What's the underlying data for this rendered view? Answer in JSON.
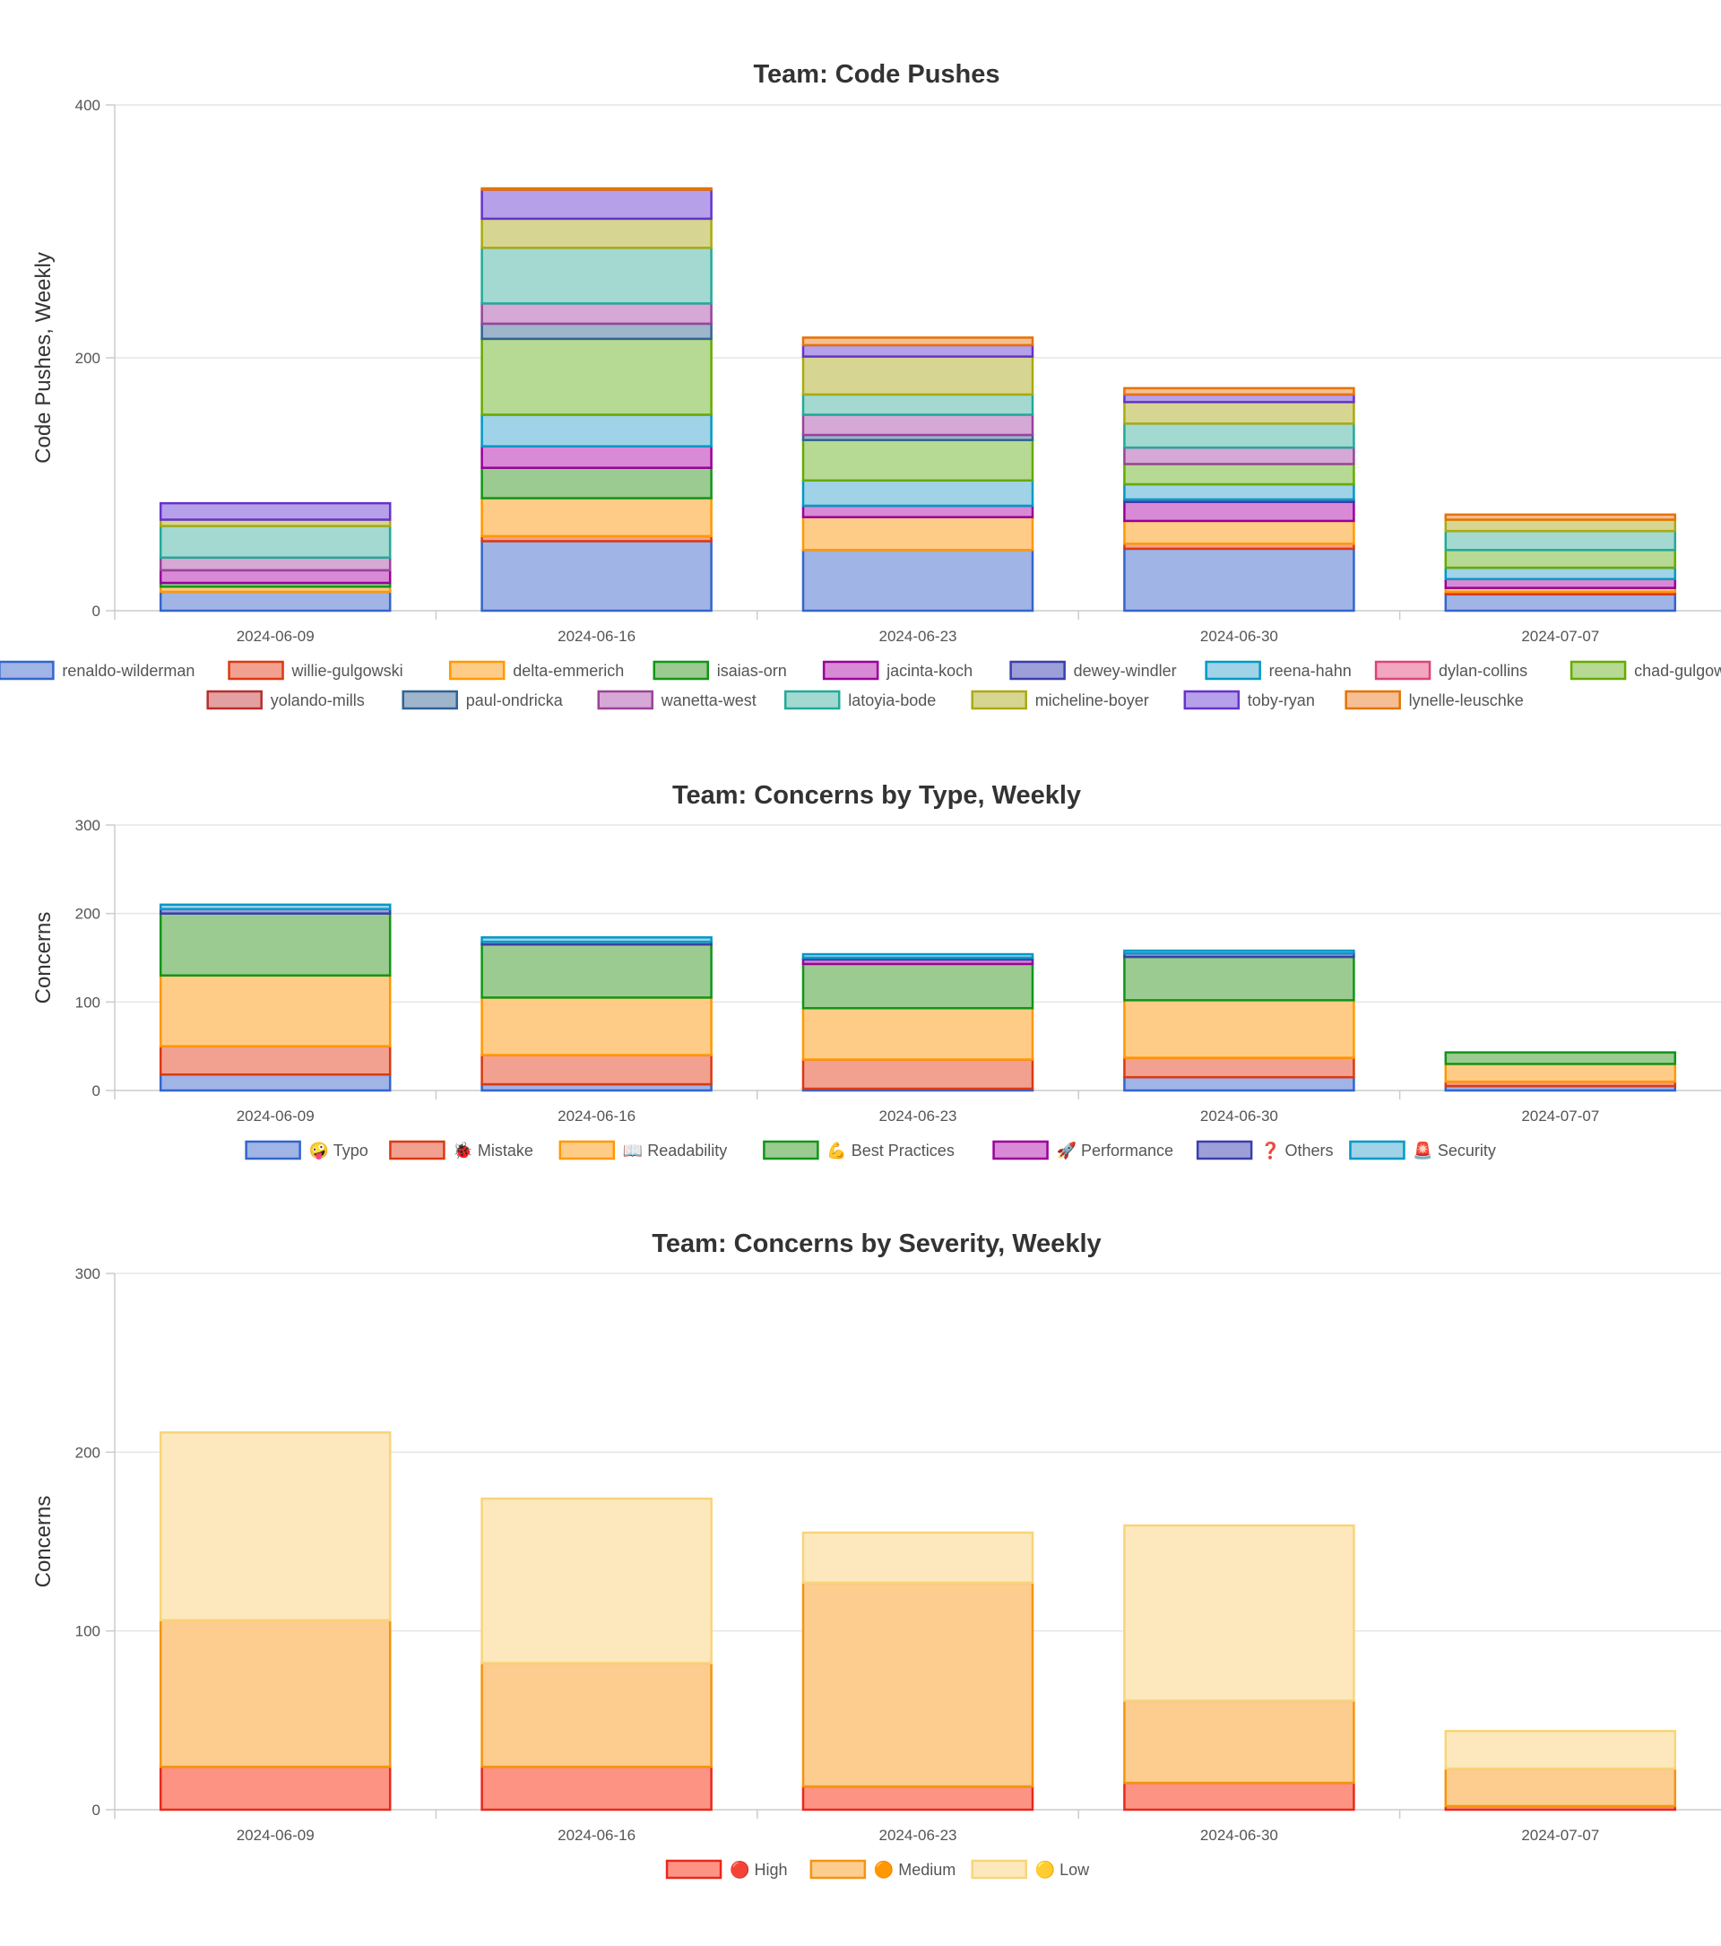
{
  "chart_data": [
    {
      "type": "bar",
      "stacked": true,
      "title": "Team: Code Pushes",
      "xlabel": "",
      "ylabel": "Code Pushes, Weekly",
      "ylim": [
        0,
        400
      ],
      "yticks": [
        0,
        200,
        400
      ],
      "categories": [
        "2024-06-09",
        "2024-06-16",
        "2024-06-23",
        "2024-06-30",
        "2024-07-07"
      ],
      "series": [
        {
          "name": "renaldo-wilderman",
          "color": "#3366cc",
          "fill": "#a0b4e6",
          "values": [
            15,
            55,
            48,
            49,
            13
          ]
        },
        {
          "name": "willie-gulgowski",
          "color": "#dc3912",
          "fill": "#f2a190",
          "values": [
            0,
            4,
            0,
            4,
            2
          ]
        },
        {
          "name": "delta-emmerich",
          "color": "#ff9900",
          "fill": "#ffcc88",
          "values": [
            4,
            30,
            26,
            18,
            3
          ]
        },
        {
          "name": "isaias-orn",
          "color": "#109618",
          "fill": "#9bcb90",
          "values": [
            3,
            24,
            0,
            0,
            0
          ]
        },
        {
          "name": "jacinta-koch",
          "color": "#990099",
          "fill": "#d98ad6",
          "values": [
            10,
            17,
            9,
            15,
            7
          ]
        },
        {
          "name": "dewey-windler",
          "color": "#3b3eac",
          "fill": "#9da0d8",
          "values": [
            0,
            0,
            0,
            2,
            0
          ]
        },
        {
          "name": "reena-hahn",
          "color": "#0099c6",
          "fill": "#a0d2e8",
          "values": [
            0,
            25,
            20,
            12,
            9
          ]
        },
        {
          "name": "dylan-collins",
          "color": "#dd4477",
          "fill": "#f3a6c0",
          "values": [
            0,
            0,
            0,
            0,
            0
          ]
        },
        {
          "name": "chad-gulgowski",
          "color": "#66aa00",
          "fill": "#b6d993",
          "values": [
            0,
            60,
            32,
            16,
            14
          ]
        },
        {
          "name": "yolando-mills",
          "color": "#b82e2e",
          "fill": "#e3a0a0",
          "values": [
            0,
            0,
            0,
            0,
            0
          ]
        },
        {
          "name": "paul-ondricka",
          "color": "#316395",
          "fill": "#9fb5cc",
          "values": [
            0,
            12,
            4,
            0,
            0
          ]
        },
        {
          "name": "wanetta-west",
          "color": "#994499",
          "fill": "#d6a8d6",
          "values": [
            10,
            16,
            16,
            13,
            0
          ]
        },
        {
          "name": "latoyia-bode",
          "color": "#22aa99",
          "fill": "#a3d9d1",
          "values": [
            25,
            44,
            16,
            19,
            15
          ]
        },
        {
          "name": "micheline-boyer",
          "color": "#aaaa11",
          "fill": "#d6d692",
          "values": [
            5,
            23,
            30,
            17,
            9
          ]
        },
        {
          "name": "toby-ryan",
          "color": "#6633cc",
          "fill": "#b6a0ea",
          "values": [
            13,
            23,
            9,
            6,
            0
          ]
        },
        {
          "name": "lynelle-leuschke",
          "color": "#e67300",
          "fill": "#f6be94",
          "values": [
            0,
            1,
            6,
            5,
            4
          ]
        }
      ]
    },
    {
      "type": "bar",
      "stacked": true,
      "title": "Team: Concerns by Type, Weekly",
      "xlabel": "",
      "ylabel": "Concerns",
      "ylim": [
        0,
        300
      ],
      "yticks": [
        0,
        100,
        200,
        300
      ],
      "categories": [
        "2024-06-09",
        "2024-06-16",
        "2024-06-23",
        "2024-06-30",
        "2024-07-07"
      ],
      "series": [
        {
          "name": "🤪 Typo",
          "color": "#3366cc",
          "fill": "#a0b4e6",
          "values": [
            18,
            7,
            2,
            15,
            5
          ]
        },
        {
          "name": "🐞 Mistake",
          "color": "#dc3912",
          "fill": "#f2a190",
          "values": [
            32,
            33,
            33,
            22,
            5
          ]
        },
        {
          "name": "📖 Readability",
          "color": "#ff9900",
          "fill": "#ffcc88",
          "values": [
            80,
            65,
            58,
            65,
            20
          ]
        },
        {
          "name": "💪 Best Practices",
          "color": "#109618",
          "fill": "#9bcb90",
          "values": [
            70,
            60,
            50,
            49,
            13
          ]
        },
        {
          "name": "🚀 Performance",
          "color": "#990099",
          "fill": "#d98ad6",
          "values": [
            0,
            0,
            5,
            0,
            0
          ]
        },
        {
          "name": "❓ Others",
          "color": "#3b3eac",
          "fill": "#9da0d8",
          "values": [
            5,
            3,
            2,
            4,
            0
          ]
        },
        {
          "name": "🚨 Security",
          "color": "#0099c6",
          "fill": "#a0d2e8",
          "values": [
            5,
            5,
            4,
            3,
            0
          ]
        }
      ]
    },
    {
      "type": "bar",
      "stacked": true,
      "title": "Team: Concerns by Severity, Weekly",
      "xlabel": "",
      "ylabel": "Concerns",
      "ylim": [
        0,
        300
      ],
      "yticks": [
        0,
        100,
        200,
        300
      ],
      "categories": [
        "2024-06-09",
        "2024-06-16",
        "2024-06-23",
        "2024-06-30",
        "2024-07-07"
      ],
      "series": [
        {
          "name": "🔴 High",
          "color": "#e8291c",
          "fill": "#fd9383",
          "values": [
            24,
            24,
            13,
            15,
            2
          ]
        },
        {
          "name": "🟠 Medium",
          "color": "#f4950f",
          "fill": "#fdcc8f",
          "values": [
            82,
            58,
            114,
            46,
            21
          ]
        },
        {
          "name": "🟡 Low",
          "color": "#f8d47a",
          "fill": "#fde8be",
          "values": [
            105,
            92,
            28,
            98,
            21
          ]
        }
      ]
    }
  ]
}
